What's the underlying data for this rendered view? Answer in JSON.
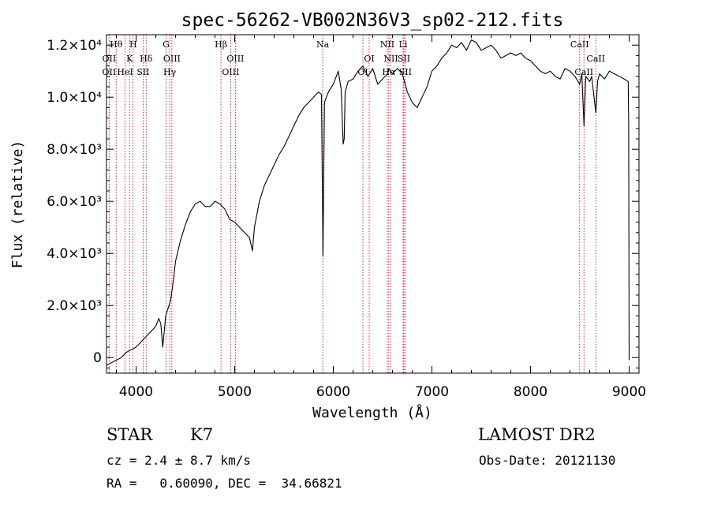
{
  "chart_data": {
    "type": "line",
    "title": "spec-56262-VB002N36V3_sp02-212.fits",
    "xlabel": "Wavelength (Å)",
    "ylabel": "Flux (relative)",
    "xlim": [
      3700,
      9100
    ],
    "ylim": [
      -600,
      12400
    ],
    "x_ticks": [
      {
        "value": 4000,
        "label": "4000"
      },
      {
        "value": 5000,
        "label": "5000"
      },
      {
        "value": 6000,
        "label": "6000"
      },
      {
        "value": 7000,
        "label": "7000"
      },
      {
        "value": 8000,
        "label": "8000"
      },
      {
        "value": 9000,
        "label": "9000"
      }
    ],
    "y_ticks": [
      {
        "value": 0,
        "label": "0"
      },
      {
        "value": 2000,
        "label": "2.0×10³"
      },
      {
        "value": 4000,
        "label": "4.0×10³"
      },
      {
        "value": 6000,
        "label": "6.0×10³"
      },
      {
        "value": 8000,
        "label": "8.0×10³"
      },
      {
        "value": 10000,
        "label": "1.0×10⁴"
      },
      {
        "value": 12000,
        "label": "1.2×10⁴"
      }
    ],
    "grid": false,
    "legend": "none",
    "series": [
      {
        "color": "#000000",
        "x": [
          3700,
          3750,
          3800,
          3850,
          3900,
          3950,
          4000,
          4050,
          4100,
          4150,
          4200,
          4230,
          4250,
          4270,
          4300,
          4350,
          4380,
          4400,
          4450,
          4500,
          4550,
          4600,
          4650,
          4700,
          4750,
          4800,
          4850,
          4900,
          4950,
          5000,
          5050,
          5100,
          5150,
          5180,
          5200,
          5230,
          5250,
          5300,
          5350,
          5400,
          5450,
          5500,
          5550,
          5600,
          5650,
          5700,
          5750,
          5800,
          5850,
          5880,
          5890,
          5895,
          5900,
          5910,
          5950,
          6000,
          6050,
          6080,
          6100,
          6110,
          6120,
          6150,
          6200,
          6250,
          6300,
          6350,
          6400,
          6450,
          6500,
          6550,
          6563,
          6580,
          6600,
          6650,
          6700,
          6750,
          6800,
          6850,
          6900,
          6950,
          7000,
          7050,
          7100,
          7150,
          7200,
          7250,
          7300,
          7350,
          7400,
          7450,
          7500,
          7550,
          7600,
          7650,
          7700,
          7750,
          7800,
          7850,
          7900,
          7950,
          8000,
          8050,
          8100,
          8150,
          8200,
          8250,
          8300,
          8350,
          8400,
          8450,
          8498,
          8520,
          8542,
          8560,
          8600,
          8620,
          8662,
          8680,
          8700,
          8750,
          8800,
          8850,
          8900,
          8950,
          8990,
          8995,
          9000
        ],
        "y": [
          -300,
          -200,
          -100,
          0,
          200,
          300,
          400,
          600,
          800,
          1000,
          1200,
          1500,
          1300,
          400,
          1600,
          2200,
          3000,
          3700,
          4500,
          5100,
          5600,
          5900,
          6000,
          5800,
          5800,
          6000,
          5900,
          5700,
          5300,
          5200,
          5000,
          4800,
          4600,
          4100,
          5000,
          5600,
          6000,
          6600,
          7000,
          7400,
          7800,
          8100,
          8500,
          8900,
          9300,
          9600,
          9800,
          10000,
          10200,
          10100,
          6000,
          3900,
          5800,
          9800,
          10200,
          10500,
          11000,
          10300,
          8200,
          8400,
          10200,
          10600,
          10700,
          11000,
          11200,
          10800,
          11100,
          10500,
          10700,
          10900,
          11100,
          11000,
          10900,
          11100,
          10900,
          10200,
          9800,
          9600,
          10000,
          10400,
          11000,
          11200,
          11500,
          11700,
          12000,
          11900,
          12100,
          11800,
          12200,
          12100,
          11800,
          11900,
          12000,
          11800,
          11500,
          11600,
          11700,
          11600,
          11700,
          11500,
          11400,
          11200,
          11000,
          10900,
          11000,
          10800,
          10700,
          11100,
          11000,
          10800,
          10500,
          10900,
          8900,
          10800,
          10600,
          10800,
          9400,
          10600,
          10900,
          10700,
          11000,
          10900,
          10800,
          10700,
          10600,
          9000,
          -100
        ]
      }
    ],
    "line_markers": [
      {
        "x": 3727,
        "labels": [
          "OII",
          "OII"
        ],
        "tier": [
          1,
          2
        ]
      },
      {
        "x": 3798,
        "labels": [
          "Hθ"
        ],
        "tier": [
          0
        ]
      },
      {
        "x": 3889,
        "labels": [
          "HeI"
        ],
        "tier": [
          2
        ]
      },
      {
        "x": 3934,
        "labels": [
          "K"
        ],
        "tier": [
          1
        ]
      },
      {
        "x": 3970,
        "labels": [
          "H"
        ],
        "tier": [
          0
        ]
      },
      {
        "x": 4072,
        "labels": [
          "SII"
        ],
        "tier": [
          2
        ]
      },
      {
        "x": 4102,
        "labels": [
          "Hδ"
        ],
        "tier": [
          1
        ]
      },
      {
        "x": 4304,
        "labels": [
          "G"
        ],
        "tier": [
          0
        ]
      },
      {
        "x": 4341,
        "labels": [
          "Hγ"
        ],
        "tier": [
          2
        ]
      },
      {
        "x": 4363,
        "labels": [
          "OIII"
        ],
        "tier": [
          1
        ]
      },
      {
        "x": 4861,
        "labels": [
          "Hβ"
        ],
        "tier": [
          0
        ]
      },
      {
        "x": 4959,
        "labels": [
          "OIII"
        ],
        "tier": [
          2
        ]
      },
      {
        "x": 5007,
        "labels": [
          "OIII"
        ],
        "tier": [
          1
        ]
      },
      {
        "x": 5893,
        "labels": [
          "Na"
        ],
        "tier": [
          0
        ]
      },
      {
        "x": 6300,
        "labels": [
          "OI"
        ],
        "tier": [
          2
        ]
      },
      {
        "x": 6364,
        "labels": [
          "OI"
        ],
        "tier": [
          1
        ]
      },
      {
        "x": 6548,
        "labels": [
          "NII"
        ],
        "tier": [
          0
        ]
      },
      {
        "x": 6563,
        "labels": [
          "Hα"
        ],
        "tier": [
          2
        ]
      },
      {
        "x": 6584,
        "labels": [
          "NII"
        ],
        "tier": [
          1
        ]
      },
      {
        "x": 6708,
        "labels": [
          "Li"
        ],
        "tier": [
          0
        ]
      },
      {
        "x": 6716,
        "labels": [
          "SII"
        ],
        "tier": [
          1
        ]
      },
      {
        "x": 6731,
        "labels": [
          "SII"
        ],
        "tier": [
          2
        ]
      },
      {
        "x": 8498,
        "labels": [
          "CaII"
        ],
        "tier": [
          0
        ]
      },
      {
        "x": 8542,
        "labels": [
          "CaII"
        ],
        "tier": [
          2
        ]
      },
      {
        "x": 8662,
        "labels": [
          "CaII"
        ],
        "tier": [
          1
        ]
      }
    ]
  },
  "info": {
    "object_class": "STAR",
    "subclass": "K7",
    "survey": "LAMOST DR2",
    "cz": "cz = 2.4 ± 8.7 km/s",
    "obs_date": "Obs-Date: 20121130",
    "coords": "RA =   0.60090, DEC =  34.66821"
  }
}
